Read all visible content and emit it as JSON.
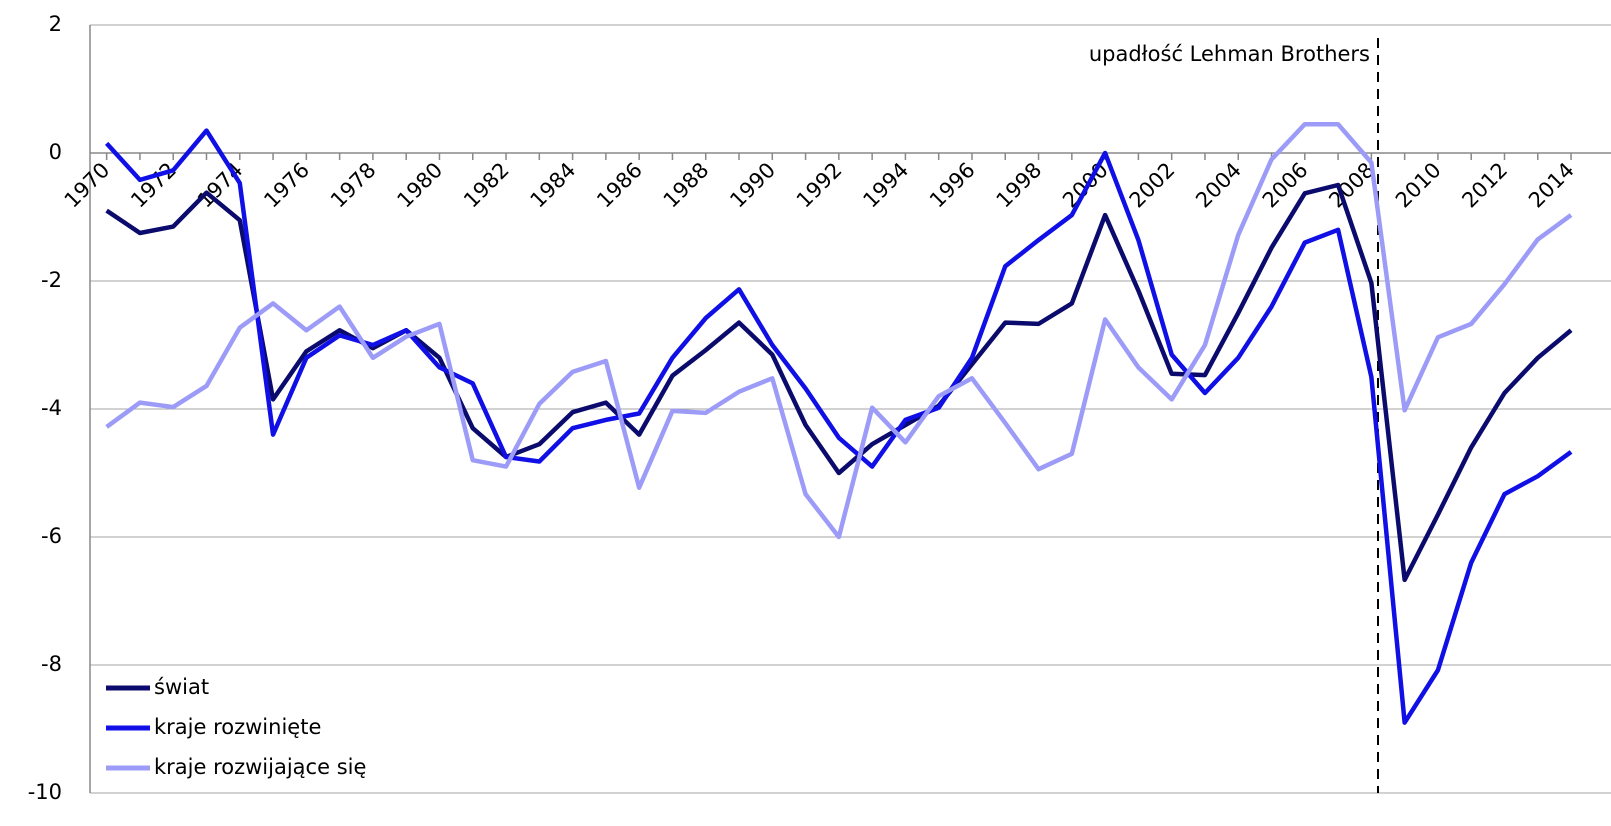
{
  "chart_data": {
    "type": "line",
    "annotation": "upadłość Lehman Brothers",
    "x": [
      1970,
      1971,
      1972,
      1973,
      1974,
      1975,
      1976,
      1977,
      1978,
      1979,
      1980,
      1981,
      1982,
      1983,
      1984,
      1985,
      1986,
      1987,
      1988,
      1989,
      1990,
      1991,
      1992,
      1993,
      1994,
      1995,
      1996,
      1997,
      1998,
      1999,
      2000,
      2001,
      2002,
      2003,
      2004,
      2005,
      2006,
      2007,
      2008,
      2009,
      2010,
      2011,
      2012,
      2013,
      2014
    ],
    "xticks": [
      1970,
      1972,
      1974,
      1976,
      1978,
      1980,
      1982,
      1984,
      1986,
      1988,
      1990,
      1992,
      1994,
      1996,
      1998,
      2000,
      2002,
      2004,
      2006,
      2008,
      2010,
      2012,
      2014
    ],
    "xlim": [
      1969.5,
      2015.2
    ],
    "ylim": [
      -10,
      2
    ],
    "yticks": [
      -10,
      -8,
      -6,
      -4,
      -2,
      0,
      2
    ],
    "grid": true,
    "legend": "lower left",
    "series": [
      {
        "name": "świat",
        "color": "#0b0b6e",
        "values": [
          -0.9,
          -1.25,
          -1.15,
          -0.62,
          -1.05,
          -3.85,
          -3.1,
          -2.77,
          -3.05,
          -2.77,
          -3.2,
          -4.3,
          -4.75,
          -4.55,
          -4.05,
          -3.9,
          -4.4,
          -3.48,
          -3.08,
          -2.65,
          -3.15,
          -4.25,
          -5.0,
          -4.55,
          -4.25,
          -3.95,
          -3.3,
          -2.65,
          -2.67,
          -2.35,
          -0.97,
          -2.15,
          -3.45,
          -3.47,
          -2.5,
          -1.48,
          -0.63,
          -0.5,
          -2.03,
          -6.67,
          -5.65,
          -4.6,
          -3.75,
          -3.2,
          -2.77
        ]
      },
      {
        "name": "kraje rozwinięte",
        "color": "#0f0fe6",
        "values": [
          0.15,
          -0.42,
          -0.27,
          0.35,
          -0.47,
          -4.4,
          -3.2,
          -2.85,
          -3.0,
          -2.77,
          -3.35,
          -3.6,
          -4.75,
          -4.82,
          -4.3,
          -4.17,
          -4.07,
          -3.2,
          -2.58,
          -2.13,
          -3.0,
          -3.68,
          -4.45,
          -4.9,
          -4.17,
          -3.98,
          -3.2,
          -1.77,
          -1.36,
          -0.97,
          0.0,
          -1.36,
          -3.15,
          -3.75,
          -3.2,
          -2.4,
          -1.4,
          -1.2,
          -3.5,
          -8.9,
          -8.08,
          -6.4,
          -5.33,
          -5.05,
          -4.67
        ]
      },
      {
        "name": "kraje rozwijające się",
        "color": "#9c9cf8",
        "values": [
          -4.28,
          -3.9,
          -3.97,
          -3.64,
          -2.73,
          -2.35,
          -2.77,
          -2.4,
          -3.2,
          -2.87,
          -2.67,
          -4.8,
          -4.9,
          -3.92,
          -3.42,
          -3.25,
          -5.23,
          -4.03,
          -4.06,
          -3.73,
          -3.52,
          -5.33,
          -6.0,
          -3.98,
          -4.52,
          -3.8,
          -3.52,
          -4.22,
          -4.94,
          -4.7,
          -2.6,
          -3.35,
          -3.85,
          -3.0,
          -1.28,
          -0.1,
          0.45,
          0.45,
          -0.15,
          -4.02,
          -2.88,
          -2.67,
          -2.05,
          -1.35,
          -0.97
        ]
      }
    ]
  }
}
